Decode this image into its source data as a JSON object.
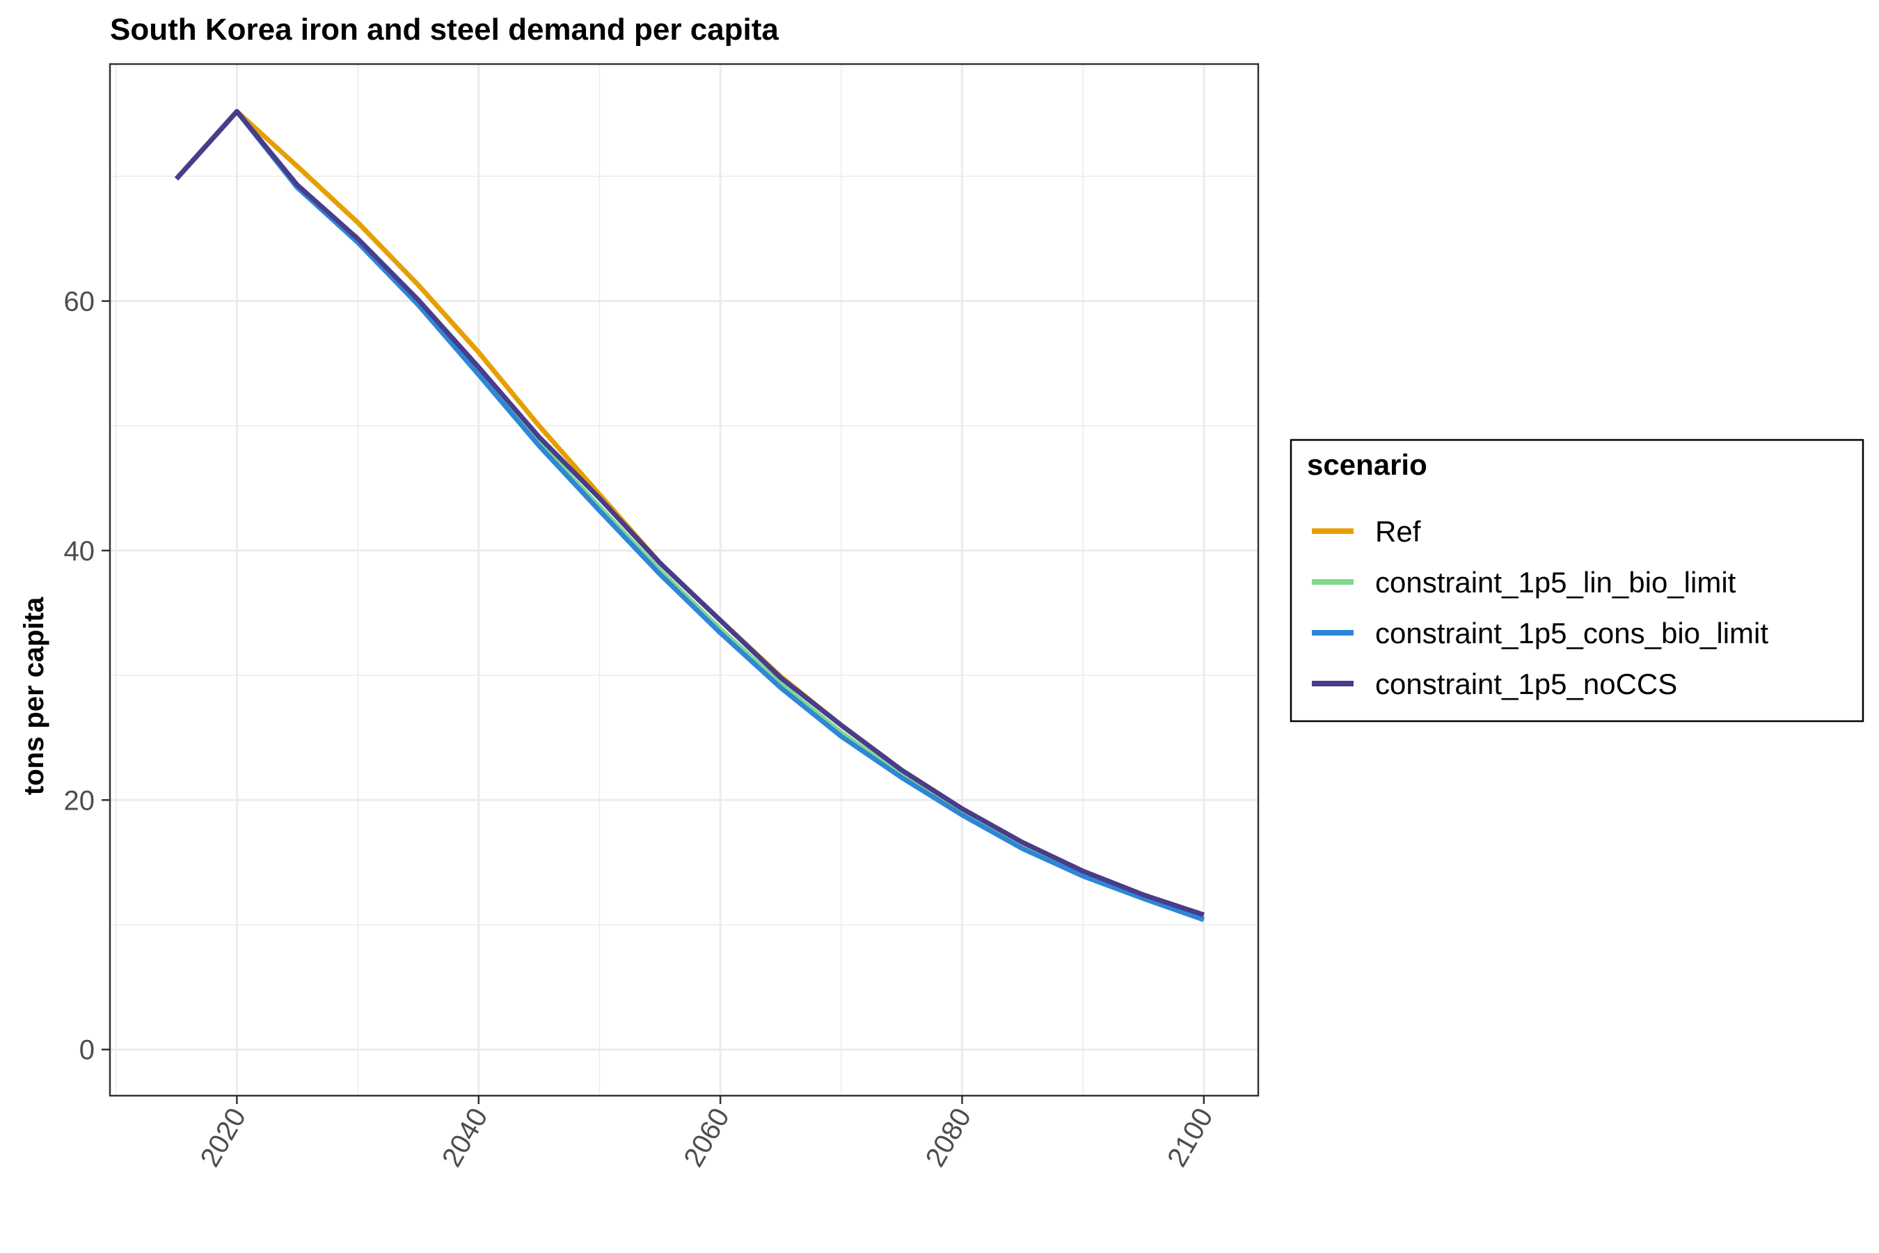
{
  "chart_data": {
    "type": "line",
    "title": "South Korea iron and steel demand per capita",
    "xlabel": "",
    "ylabel": "tons per capita",
    "x": [
      2015,
      2020,
      2025,
      2030,
      2035,
      2040,
      2045,
      2050,
      2055,
      2060,
      2065,
      2070,
      2075,
      2080,
      2085,
      2090,
      2095,
      2100
    ],
    "xlim": [
      2009.5,
      2104.5
    ],
    "ylim": [
      -3.7,
      79
    ],
    "xticks": [
      "2020",
      "2040",
      "2060",
      "2080",
      "2100"
    ],
    "yticks": [
      "0",
      "20",
      "40",
      "60"
    ],
    "grid": true,
    "legend_title": "scenario",
    "legend_position": "right",
    "series": [
      {
        "name": "Ref",
        "color": "#E69F00",
        "values": [
          69.8,
          75.2,
          70.8,
          66.3,
          61.3,
          55.9,
          50.0,
          44.5,
          39.0,
          34.4,
          29.9,
          26.0,
          22.4,
          19.3,
          16.6,
          14.3,
          12.4,
          10.8
        ]
      },
      {
        "name": "constraint_1p5_lin_bio_limit",
        "color": "#7FD88E",
        "values": [
          69.8,
          75.2,
          69.1,
          64.8,
          59.8,
          54.2,
          48.6,
          43.5,
          38.4,
          33.7,
          29.3,
          25.4,
          22.0,
          18.9,
          16.3,
          14.0,
          12.2,
          10.5
        ]
      },
      {
        "name": "constraint_1p5_cons_bio_limit",
        "color": "#2E86D6",
        "values": [
          69.8,
          75.2,
          69.1,
          64.7,
          59.7,
          54.1,
          48.4,
          43.2,
          38.1,
          33.4,
          29.0,
          25.1,
          21.8,
          18.8,
          16.1,
          13.9,
          12.1,
          10.4
        ]
      },
      {
        "name": "constraint_1p5_noCCS",
        "color": "#483D8B",
        "values": [
          69.8,
          75.2,
          69.3,
          65.0,
          60.1,
          54.7,
          49.1,
          44.2,
          39.0,
          34.4,
          29.8,
          26.0,
          22.4,
          19.3,
          16.6,
          14.3,
          12.4,
          10.8
        ]
      }
    ]
  }
}
